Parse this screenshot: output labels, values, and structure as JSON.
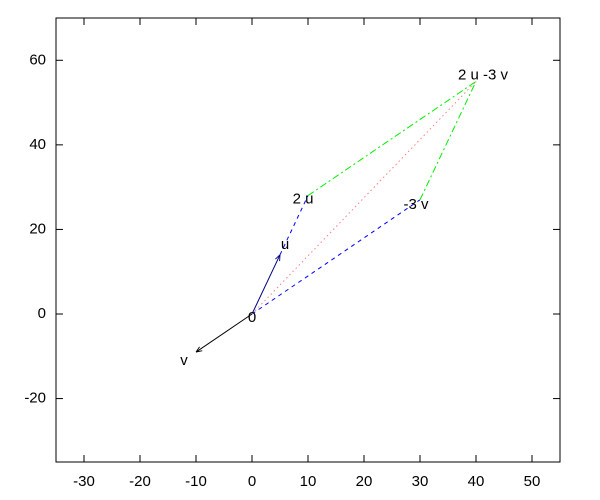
{
  "chart_data": {
    "type": "vector",
    "xlim": [
      -35,
      55
    ],
    "xticks": [
      -30,
      -20,
      -10,
      0,
      10,
      20,
      30,
      40,
      50
    ],
    "ylim": [
      -35,
      70
    ],
    "yticks": [
      -20,
      0,
      20,
      40,
      60
    ],
    "segments": [
      {
        "x": [
          0,
          5
        ],
        "y": [
          0,
          14
        ],
        "color": "#000080",
        "style": "solid",
        "arrow": true
      },
      {
        "x": [
          0,
          -10
        ],
        "y": [
          0,
          -9
        ],
        "color": "#000000",
        "style": "solid",
        "arrow": true
      },
      {
        "x": [
          5,
          10
        ],
        "y": [
          14,
          28
        ],
        "color": "#0000ff",
        "style": "dashed",
        "arrow": false
      },
      {
        "x": [
          0,
          30
        ],
        "y": [
          0,
          27
        ],
        "color": "#0000ff",
        "style": "dashed",
        "arrow": false
      },
      {
        "x": [
          10,
          40
        ],
        "y": [
          28,
          55
        ],
        "color": "#00ee00",
        "style": "dash-dot",
        "arrow": false
      },
      {
        "x": [
          30,
          40
        ],
        "y": [
          27,
          55
        ],
        "color": "#00ee00",
        "style": "dash-dot",
        "arrow": false
      },
      {
        "x": [
          0,
          40
        ],
        "y": [
          0,
          55
        ],
        "color": "#ff8080",
        "style": "dotted",
        "arrow": false
      }
    ],
    "labels": [
      {
        "text": "0",
        "x": 0,
        "y": 0
      },
      {
        "text": "u",
        "x": 5,
        "y": 14
      },
      {
        "text": "v",
        "x": -10,
        "y": -9
      },
      {
        "text": "2 u",
        "x": 10,
        "y": 28
      },
      {
        "text": "-3 v",
        "x": 30,
        "y": 27
      },
      {
        "text": "2 u -3 v",
        "x": 40,
        "y": 55
      }
    ]
  }
}
